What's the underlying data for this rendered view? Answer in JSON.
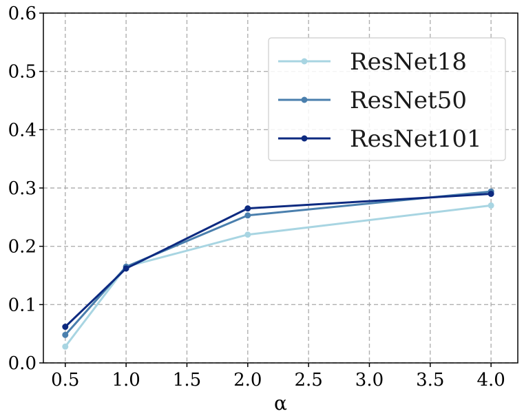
{
  "chart_data": {
    "type": "line",
    "title": "",
    "xlabel": "α",
    "ylabel": "",
    "xlim": [
      0.32,
      4.22
    ],
    "ylim": [
      0.0,
      0.6
    ],
    "xticks": [
      "0.5",
      "1.0",
      "1.5",
      "2.0",
      "2.5",
      "3.0",
      "3.5",
      "4.0"
    ],
    "yticks": [
      "0.0",
      "0.1",
      "0.2",
      "0.3",
      "0.4",
      "0.5",
      "0.6"
    ],
    "grid": true,
    "legend_position": "top-right",
    "x": [
      0.5,
      1.0,
      2.0,
      4.0
    ],
    "series": [
      {
        "name": "ResNet18",
        "color": "#a8d5e2",
        "values": [
          0.028,
          0.165,
          0.22,
          0.27
        ]
      },
      {
        "name": "ResNet50",
        "color": "#4a7fad",
        "values": [
          0.048,
          0.165,
          0.253,
          0.294
        ]
      },
      {
        "name": "ResNet101",
        "color": "#0d2a80",
        "values": [
          0.062,
          0.162,
          0.265,
          0.29
        ]
      }
    ]
  }
}
